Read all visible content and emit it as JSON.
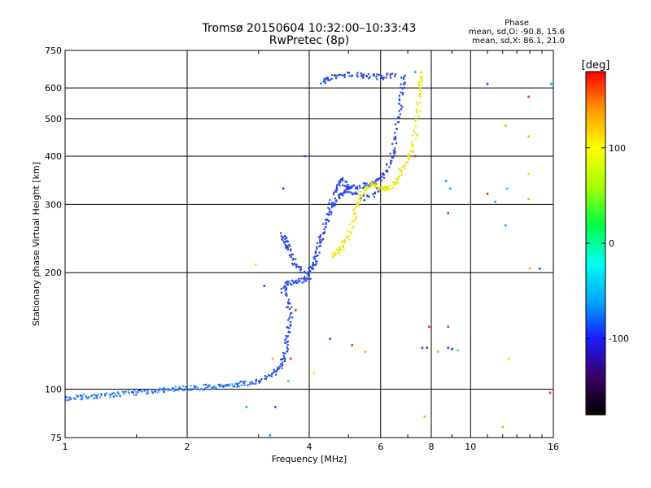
{
  "chart_data": {
    "type": "scatter",
    "title": "Tromsø 20150604 10:32:00–10:33:43",
    "subtitle": "RwPretec (8p)",
    "xlabel": "Frequency [MHz]",
    "ylabel": "Stationary phase Virtual Height [km]",
    "xscale": "log",
    "yscale": "log",
    "xlim": [
      1,
      16
    ],
    "ylim": [
      75,
      750
    ],
    "xticks": [
      1,
      2,
      4,
      6,
      8,
      10,
      16
    ],
    "xtick_labels": [
      "1",
      "2",
      "4",
      "6",
      "8",
      "10",
      "16"
    ],
    "yticks": [
      75,
      100,
      200,
      300,
      400,
      500,
      600,
      750
    ],
    "ytick_labels": [
      "75",
      "100",
      "200",
      "300",
      "400",
      "500",
      "600",
      "750"
    ],
    "grid": true,
    "colorbar": {
      "label": "[deg]",
      "range": [
        -180,
        180
      ],
      "ticks": [
        100,
        0,
        -100
      ],
      "tick_labels": [
        "100",
        "0",
        "-100"
      ],
      "colors": [
        "#000000",
        "#3a0066",
        "#1a1aff",
        "#00aaff",
        "#00ffee",
        "#00ff44",
        "#aaff00",
        "#ffff00",
        "#ff9900",
        "#ff0000"
      ]
    },
    "phase_stats": {
      "title": "Phase",
      "o_line": "mean, sd,O: -90.8, 15.6",
      "x_line": "mean, sd,X:  86.1, 21.0"
    },
    "series": [
      {
        "mode": "O",
        "color": "#2244ee",
        "trace": [
          [
            1.0,
            95
          ],
          [
            1.2,
            96
          ],
          [
            1.5,
            98
          ],
          [
            1.8,
            100
          ],
          [
            2.1,
            101
          ],
          [
            2.5,
            102
          ],
          [
            2.9,
            104
          ],
          [
            3.2,
            108
          ],
          [
            3.4,
            115
          ],
          [
            3.5,
            125
          ],
          [
            3.55,
            140
          ],
          [
            3.6,
            160
          ],
          [
            3.45,
            180
          ],
          [
            3.55,
            188
          ],
          [
            3.8,
            190
          ],
          [
            4.0,
            195
          ],
          [
            4.2,
            230
          ],
          [
            4.4,
            270
          ],
          [
            4.6,
            300
          ],
          [
            4.8,
            320
          ],
          [
            5.0,
            330
          ],
          [
            5.3,
            335
          ],
          [
            5.7,
            340
          ],
          [
            6.0,
            350
          ],
          [
            6.3,
            380
          ],
          [
            6.5,
            430
          ],
          [
            6.7,
            520
          ],
          [
            6.8,
            600
          ],
          [
            6.85,
            640
          ]
        ]
      },
      {
        "mode": "O-upper",
        "color": "#2244ee",
        "trace": [
          [
            3.45,
            250
          ],
          [
            3.5,
            240
          ],
          [
            3.55,
            230
          ],
          [
            3.7,
            210
          ],
          [
            3.9,
            200
          ],
          [
            4.1,
            210
          ],
          [
            4.3,
            250
          ],
          [
            4.6,
            320
          ],
          [
            4.8,
            350
          ],
          [
            5.0,
            330
          ],
          [
            5.5,
            310
          ],
          [
            6.0,
            330
          ]
        ]
      },
      {
        "mode": "O-top",
        "color": "#2244ee",
        "trace": [
          [
            4.3,
            620
          ],
          [
            4.5,
            640
          ],
          [
            5.0,
            650
          ],
          [
            5.5,
            645
          ],
          [
            6.0,
            640
          ],
          [
            6.5,
            650
          ]
        ]
      },
      {
        "mode": "X",
        "color": "#e8e800",
        "trace": [
          [
            4.6,
            220
          ],
          [
            4.8,
            230
          ],
          [
            5.0,
            250
          ],
          [
            5.2,
            290
          ],
          [
            5.4,
            320
          ],
          [
            5.7,
            340
          ],
          [
            6.0,
            330
          ],
          [
            6.3,
            330
          ],
          [
            6.6,
            350
          ],
          [
            6.9,
            380
          ],
          [
            7.2,
            420
          ],
          [
            7.4,
            500
          ],
          [
            7.5,
            600
          ],
          [
            7.55,
            660
          ]
        ]
      }
    ],
    "scatter_points": [
      {
        "x": 3.45,
        "y": 330,
        "color": "#2244ee"
      },
      {
        "x": 3.9,
        "y": 400,
        "color": "#2244ee"
      },
      {
        "x": 3.1,
        "y": 185,
        "color": "#2244ee"
      },
      {
        "x": 2.95,
        "y": 210,
        "color": "#e8e800"
      },
      {
        "x": 4.5,
        "y": 135,
        "color": "#2244ee"
      },
      {
        "x": 5.1,
        "y": 130,
        "color": "#ee3300"
      },
      {
        "x": 5.5,
        "y": 125,
        "color": "#ffaa00"
      },
      {
        "x": 4.1,
        "y": 110,
        "color": "#e8e800"
      },
      {
        "x": 3.3,
        "y": 90,
        "color": "#2244ee"
      },
      {
        "x": 3.2,
        "y": 76,
        "color": "#00aaff"
      },
      {
        "x": 2.8,
        "y": 90,
        "color": "#00aaff"
      },
      {
        "x": 7.6,
        "y": 128,
        "color": "#2244ee"
      },
      {
        "x": 7.8,
        "y": 128,
        "color": "#2244ee"
      },
      {
        "x": 7.9,
        "y": 145,
        "color": "#ee3300"
      },
      {
        "x": 8.3,
        "y": 125,
        "color": "#ffaa00"
      },
      {
        "x": 8.8,
        "y": 128,
        "color": "#2244ee"
      },
      {
        "x": 9.0,
        "y": 127,
        "color": "#2244ee"
      },
      {
        "x": 9.3,
        "y": 126,
        "color": "#00ff44"
      },
      {
        "x": 8.8,
        "y": 145,
        "color": "#ee3300"
      },
      {
        "x": 8.7,
        "y": 345,
        "color": "#00aaff"
      },
      {
        "x": 8.8,
        "y": 285,
        "color": "#ee3300"
      },
      {
        "x": 8.9,
        "y": 330,
        "color": "#00aaff"
      },
      {
        "x": 7.7,
        "y": 85,
        "color": "#ffaa00"
      },
      {
        "x": 11.0,
        "y": 615,
        "color": "#2244ee"
      },
      {
        "x": 11.0,
        "y": 320,
        "color": "#ee3300"
      },
      {
        "x": 11.5,
        "y": 305,
        "color": "#00aaff"
      },
      {
        "x": 12.2,
        "y": 480,
        "color": "#ffaa00"
      },
      {
        "x": 12.3,
        "y": 330,
        "color": "#00ff44"
      },
      {
        "x": 12.2,
        "y": 265,
        "color": "#00aaff"
      },
      {
        "x": 12.0,
        "y": 80,
        "color": "#ffaa00"
      },
      {
        "x": 12.4,
        "y": 120,
        "color": "#aaff00"
      },
      {
        "x": 13.9,
        "y": 570,
        "color": "#ee3300"
      },
      {
        "x": 13.9,
        "y": 450,
        "color": "#ffaa00"
      },
      {
        "x": 13.9,
        "y": 360,
        "color": "#e8e800"
      },
      {
        "x": 13.9,
        "y": 310,
        "color": "#ffaa00"
      },
      {
        "x": 14.0,
        "y": 205,
        "color": "#ffaa00"
      },
      {
        "x": 14.8,
        "y": 205,
        "color": "#2244ee"
      },
      {
        "x": 15.7,
        "y": 98,
        "color": "#ee3300"
      },
      {
        "x": 15.8,
        "y": 615,
        "color": "#00aaff"
      },
      {
        "x": 7.3,
        "y": 660,
        "color": "#00aaff"
      },
      {
        "x": 7.3,
        "y": 400,
        "color": "#ee3300"
      },
      {
        "x": 3.7,
        "y": 160,
        "color": "#ee3300"
      },
      {
        "x": 3.55,
        "y": 105,
        "color": "#00ff44"
      },
      {
        "x": 3.6,
        "y": 120,
        "color": "#ee3300"
      },
      {
        "x": 3.25,
        "y": 120,
        "color": "#ffaa00"
      }
    ]
  }
}
